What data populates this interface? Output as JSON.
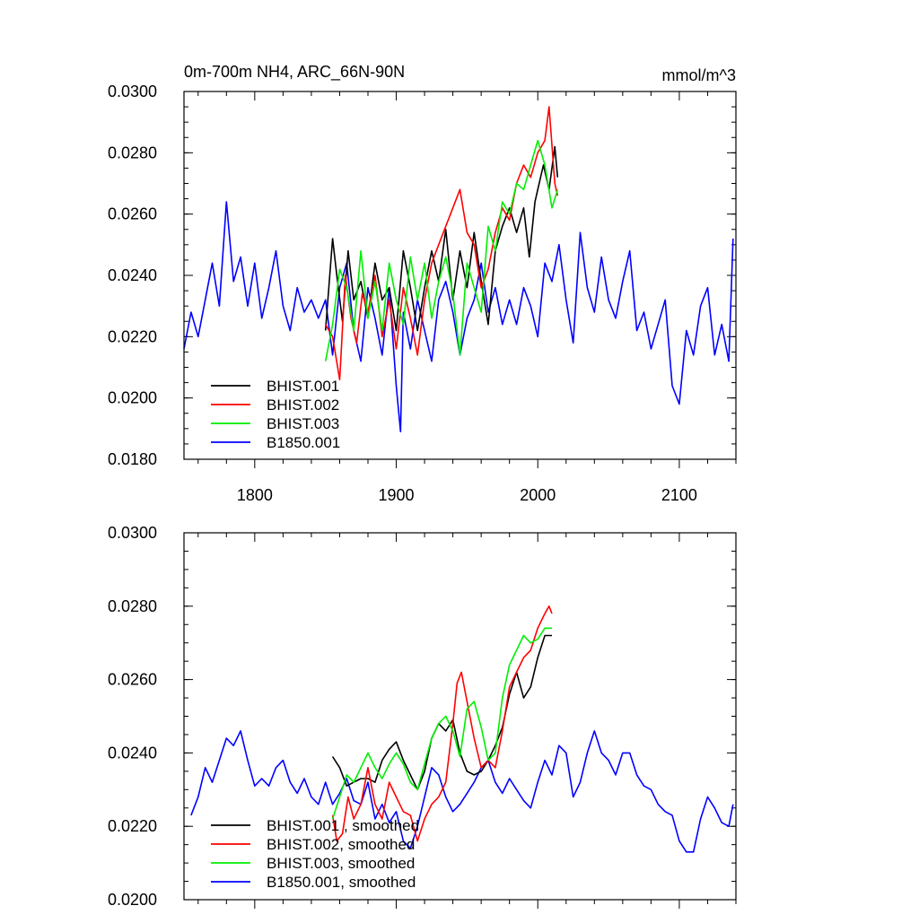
{
  "chart_data": [
    {
      "type": "line",
      "title": "0m-700m NH4, ARC_66N-90N",
      "units": "mmol/m^3",
      "xlim": [
        1750,
        2140
      ],
      "ylim": [
        0.018,
        0.03
      ],
      "x_ticks": [
        1800,
        1900,
        2000,
        2100
      ],
      "x_tick_labels": [
        "1800",
        "1900",
        "2000",
        "2100"
      ],
      "y_ticks": [
        0.018,
        0.02,
        0.022,
        0.024,
        0.026,
        0.028,
        0.03
      ],
      "y_tick_labels": [
        "0.0180",
        "0.0200",
        "0.0220",
        "0.0240",
        "0.0260",
        "0.0280",
        "0.0300"
      ],
      "legend_position": "bottom-left",
      "series": [
        {
          "name": "BHIST.001",
          "color": "#000000",
          "x": [
            1850,
            1855,
            1858,
            1862,
            1866,
            1870,
            1875,
            1880,
            1885,
            1890,
            1895,
            1900,
            1905,
            1910,
            1915,
            1920,
            1925,
            1930,
            1935,
            1940,
            1945,
            1950,
            1955,
            1960,
            1965,
            1970,
            1975,
            1980,
            1985,
            1990,
            1994,
            1998,
            2000,
            2004,
            2008,
            2012,
            2014
          ],
          "y": [
            0.0222,
            0.0252,
            0.024,
            0.0225,
            0.0248,
            0.0232,
            0.0238,
            0.0226,
            0.0244,
            0.0232,
            0.0236,
            0.0222,
            0.0248,
            0.0236,
            0.0222,
            0.0236,
            0.0248,
            0.0238,
            0.0255,
            0.0232,
            0.0248,
            0.0236,
            0.0254,
            0.0238,
            0.0224,
            0.0248,
            0.0256,
            0.0262,
            0.0254,
            0.0262,
            0.0246,
            0.0264,
            0.0268,
            0.0276,
            0.0268,
            0.0282,
            0.0272
          ]
        },
        {
          "name": "BHIST.002",
          "color": "#ff0000",
          "x": [
            1850,
            1855,
            1860,
            1864,
            1868,
            1872,
            1876,
            1880,
            1885,
            1890,
            1895,
            1900,
            1905,
            1910,
            1915,
            1920,
            1925,
            1930,
            1935,
            1940,
            1945,
            1950,
            1955,
            1960,
            1965,
            1970,
            1975,
            1980,
            1985,
            1990,
            1995,
            2000,
            2005,
            2008,
            2012,
            2014
          ],
          "y": [
            0.0224,
            0.022,
            0.0206,
            0.024,
            0.0226,
            0.0218,
            0.0234,
            0.0228,
            0.024,
            0.022,
            0.0232,
            0.0216,
            0.0236,
            0.0226,
            0.0214,
            0.0232,
            0.0244,
            0.025,
            0.0256,
            0.0262,
            0.0268,
            0.0254,
            0.025,
            0.0236,
            0.0242,
            0.0254,
            0.0262,
            0.0258,
            0.027,
            0.0276,
            0.0272,
            0.028,
            0.0284,
            0.0295,
            0.027,
            0.0266
          ]
        },
        {
          "name": "BHIST.003",
          "color": "#00ee00",
          "x": [
            1850,
            1855,
            1860,
            1865,
            1870,
            1875,
            1880,
            1885,
            1890,
            1895,
            1900,
            1905,
            1910,
            1915,
            1920,
            1925,
            1930,
            1935,
            1940,
            1945,
            1950,
            1955,
            1960,
            1965,
            1970,
            1975,
            1980,
            1985,
            1990,
            1995,
            2000,
            2005,
            2010,
            2014
          ],
          "y": [
            0.0212,
            0.0224,
            0.0242,
            0.0236,
            0.0222,
            0.0248,
            0.0226,
            0.0238,
            0.0222,
            0.0244,
            0.0232,
            0.0224,
            0.0246,
            0.0232,
            0.0244,
            0.0226,
            0.0238,
            0.0246,
            0.0234,
            0.0214,
            0.0244,
            0.0236,
            0.0228,
            0.0256,
            0.0248,
            0.0264,
            0.026,
            0.027,
            0.0268,
            0.0276,
            0.0284,
            0.0276,
            0.0262,
            0.0268
          ]
        },
        {
          "name": "B1850.001",
          "color": "#0000ff",
          "x": [
            1750,
            1755,
            1760,
            1765,
            1770,
            1775,
            1780,
            1785,
            1790,
            1795,
            1800,
            1805,
            1810,
            1815,
            1820,
            1825,
            1830,
            1835,
            1840,
            1845,
            1850,
            1855,
            1860,
            1865,
            1870,
            1875,
            1880,
            1885,
            1890,
            1895,
            1900,
            1903,
            1905,
            1910,
            1915,
            1920,
            1925,
            1930,
            1935,
            1940,
            1945,
            1950,
            1955,
            1960,
            1965,
            1970,
            1975,
            1980,
            1985,
            1990,
            1995,
            2000,
            2005,
            2010,
            2015,
            2020,
            2025,
            2030,
            2035,
            2040,
            2045,
            2050,
            2055,
            2060,
            2065,
            2070,
            2075,
            2080,
            2085,
            2090,
            2095,
            2100,
            2105,
            2110,
            2115,
            2120,
            2125,
            2130,
            2135,
            2138
          ],
          "y": [
            0.0216,
            0.0228,
            0.022,
            0.0232,
            0.0244,
            0.023,
            0.0264,
            0.0238,
            0.0246,
            0.023,
            0.0244,
            0.0226,
            0.0236,
            0.0248,
            0.023,
            0.0222,
            0.0236,
            0.0228,
            0.0232,
            0.0226,
            0.0232,
            0.0214,
            0.0236,
            0.0244,
            0.0222,
            0.0212,
            0.0236,
            0.0226,
            0.0214,
            0.0236,
            0.0204,
            0.0189,
            0.0228,
            0.0216,
            0.0232,
            0.0222,
            0.0212,
            0.0232,
            0.0238,
            0.0228,
            0.0214,
            0.0226,
            0.0232,
            0.0244,
            0.0228,
            0.0236,
            0.0224,
            0.0232,
            0.0224,
            0.0236,
            0.023,
            0.022,
            0.0244,
            0.0238,
            0.025,
            0.0232,
            0.0218,
            0.0254,
            0.0236,
            0.0228,
            0.0246,
            0.0232,
            0.0226,
            0.0238,
            0.0248,
            0.0222,
            0.0228,
            0.0216,
            0.0224,
            0.0232,
            0.0204,
            0.0198,
            0.0222,
            0.0214,
            0.023,
            0.0236,
            0.0214,
            0.0224,
            0.0212,
            0.0252
          ]
        }
      ]
    },
    {
      "type": "line",
      "xlim": [
        1750,
        2140
      ],
      "ylim": [
        0.02,
        0.03
      ],
      "x_ticks": [
        1800,
        1900,
        2000,
        2100
      ],
      "y_ticks": [
        0.02,
        0.022,
        0.024,
        0.026,
        0.028,
        0.03
      ],
      "y_tick_labels": [
        "0.0200",
        "0.0220",
        "0.0240",
        "0.0260",
        "0.0280",
        "0.0300"
      ],
      "legend_position": "bottom-left",
      "series": [
        {
          "name": "BHIST.001 , smoothed",
          "color": "#000000",
          "x": [
            1855,
            1860,
            1865,
            1870,
            1875,
            1880,
            1885,
            1890,
            1895,
            1900,
            1905,
            1910,
            1915,
            1920,
            1925,
            1930,
            1935,
            1940,
            1945,
            1950,
            1955,
            1960,
            1965,
            1970,
            1975,
            1980,
            1985,
            1990,
            1995,
            2000,
            2005,
            2010
          ],
          "y": [
            0.0239,
            0.0236,
            0.0231,
            0.0232,
            0.0233,
            0.0233,
            0.0232,
            0.0238,
            0.0241,
            0.0243,
            0.0238,
            0.0234,
            0.023,
            0.0235,
            0.0244,
            0.0248,
            0.0246,
            0.0249,
            0.024,
            0.0235,
            0.0234,
            0.0235,
            0.0238,
            0.0242,
            0.0247,
            0.0256,
            0.0262,
            0.0255,
            0.0258,
            0.0266,
            0.0272,
            0.0272
          ]
        },
        {
          "name": "BHIST.002, smoothed",
          "color": "#ff0000",
          "x": [
            1855,
            1858,
            1862,
            1866,
            1870,
            1875,
            1880,
            1885,
            1890,
            1895,
            1900,
            1905,
            1910,
            1915,
            1920,
            1925,
            1930,
            1935,
            1940,
            1943,
            1946,
            1950,
            1955,
            1960,
            1965,
            1970,
            1975,
            1980,
            1985,
            1990,
            1995,
            2000,
            2005,
            2008,
            2010
          ],
          "y": [
            0.0223,
            0.0216,
            0.0218,
            0.0228,
            0.0222,
            0.0226,
            0.0236,
            0.0226,
            0.0222,
            0.0232,
            0.0228,
            0.0224,
            0.0223,
            0.0216,
            0.0222,
            0.0226,
            0.0228,
            0.0232,
            0.0248,
            0.0259,
            0.0262,
            0.0254,
            0.0244,
            0.0236,
            0.0238,
            0.0236,
            0.0246,
            0.0258,
            0.0262,
            0.0266,
            0.0268,
            0.0274,
            0.0278,
            0.028,
            0.0278
          ]
        },
        {
          "name": "BHIST.003, smoothed",
          "color": "#00ee00",
          "x": [
            1855,
            1860,
            1865,
            1870,
            1875,
            1880,
            1885,
            1890,
            1895,
            1900,
            1905,
            1910,
            1915,
            1920,
            1925,
            1930,
            1935,
            1940,
            1945,
            1950,
            1955,
            1960,
            1965,
            1970,
            1975,
            1980,
            1985,
            1990,
            1995,
            2000,
            2005,
            2010
          ],
          "y": [
            0.0222,
            0.0228,
            0.0234,
            0.0232,
            0.0236,
            0.024,
            0.0236,
            0.0233,
            0.0237,
            0.024,
            0.0237,
            0.0232,
            0.023,
            0.0237,
            0.0244,
            0.0248,
            0.025,
            0.0246,
            0.0239,
            0.0252,
            0.0254,
            0.0247,
            0.0238,
            0.024,
            0.0255,
            0.0264,
            0.0268,
            0.0272,
            0.027,
            0.0271,
            0.0274,
            0.0274
          ]
        },
        {
          "name": "B1850.001, smoothed",
          "color": "#0000ff",
          "x": [
            1755,
            1760,
            1765,
            1770,
            1775,
            1780,
            1785,
            1790,
            1795,
            1800,
            1805,
            1810,
            1815,
            1820,
            1825,
            1830,
            1835,
            1840,
            1845,
            1850,
            1855,
            1860,
            1865,
            1870,
            1875,
            1880,
            1885,
            1890,
            1895,
            1900,
            1905,
            1910,
            1915,
            1920,
            1925,
            1930,
            1935,
            1940,
            1945,
            1950,
            1955,
            1960,
            1965,
            1970,
            1975,
            1980,
            1985,
            1990,
            1995,
            2000,
            2005,
            2010,
            2015,
            2020,
            2025,
            2030,
            2035,
            2040,
            2045,
            2050,
            2055,
            2060,
            2065,
            2070,
            2075,
            2080,
            2085,
            2090,
            2095,
            2100,
            2105,
            2110,
            2115,
            2120,
            2125,
            2130,
            2135,
            2138
          ],
          "y": [
            0.0223,
            0.0228,
            0.0236,
            0.0232,
            0.0238,
            0.0244,
            0.0242,
            0.0246,
            0.0238,
            0.0231,
            0.0233,
            0.0231,
            0.0236,
            0.0238,
            0.0232,
            0.0229,
            0.0233,
            0.0228,
            0.0226,
            0.0232,
            0.0226,
            0.0229,
            0.0233,
            0.0227,
            0.0226,
            0.0232,
            0.0222,
            0.0226,
            0.0221,
            0.0224,
            0.0216,
            0.0214,
            0.022,
            0.0228,
            0.0236,
            0.0234,
            0.0228,
            0.0224,
            0.0226,
            0.0229,
            0.0232,
            0.0236,
            0.0238,
            0.0232,
            0.0229,
            0.0233,
            0.023,
            0.0227,
            0.0225,
            0.0232,
            0.0238,
            0.0234,
            0.0242,
            0.024,
            0.0228,
            0.0232,
            0.024,
            0.0246,
            0.024,
            0.0238,
            0.0234,
            0.024,
            0.024,
            0.0234,
            0.0231,
            0.023,
            0.0226,
            0.0224,
            0.0223,
            0.0216,
            0.0213,
            0.0213,
            0.0222,
            0.0228,
            0.0225,
            0.0221,
            0.022,
            0.0226
          ]
        }
      ]
    }
  ]
}
